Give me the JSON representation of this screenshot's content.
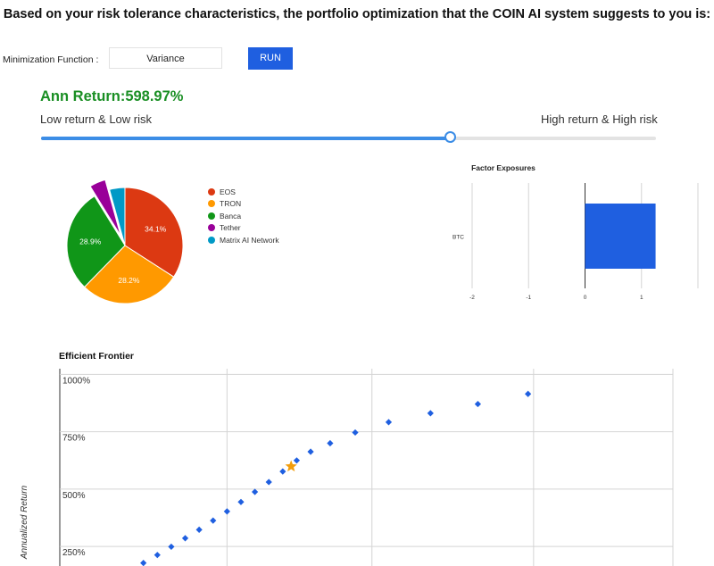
{
  "header": {
    "title": "Based on your risk tolerance characteristics, the portfolio optimization that the COIN AI system suggests to you is:"
  },
  "controls": {
    "min_label": "Minimization Function :",
    "min_value": "Variance",
    "run_label": "RUN"
  },
  "result": {
    "ann_return": "Ann Return:598.97%"
  },
  "slider": {
    "low_label": "Low return & Low risk",
    "high_label": "High return & High risk",
    "value": 0.666
  },
  "colors": {
    "accent": "#1f5fe0",
    "return_green": "#1a8f24",
    "slider": "#3c8de6",
    "star": "#f29d0c"
  },
  "chart_data": [
    {
      "type": "pie",
      "labels": [
        "EOS",
        "TRON",
        "Banca",
        "Tether",
        "Matrix AI Network"
      ],
      "values": [
        34.1,
        28.2,
        28.9,
        4.5,
        4.3
      ],
      "value_labels": [
        "34.1%",
        "28.2%",
        "28.9%",
        "",
        ""
      ],
      "colors": [
        "#dc3912",
        "#ff9900",
        "#109618",
        "#990099",
        "#0099c6"
      ],
      "exploded": [
        "Tether"
      ],
      "legend": "right"
    },
    {
      "type": "bar",
      "orientation": "horizontal",
      "title": "Factor Exposures",
      "categories": [
        "BTC"
      ],
      "values": [
        1.25
      ],
      "xlim": [
        -2,
        2
      ],
      "xticks": [
        "-2",
        "-1",
        "0",
        "1"
      ],
      "color": "#1f5fe0",
      "grid": true
    },
    {
      "type": "scatter",
      "title": "Efficient Frontier",
      "ylabel": "Annualized Return",
      "yticks": [
        "1000%",
        "750%",
        "500%",
        "250%"
      ],
      "ylim_visible": [
        165,
        1025
      ],
      "points": [
        {
          "x": 0.0,
          "y": 178
        },
        {
          "x": 0.05,
          "y": 213
        },
        {
          "x": 0.1,
          "y": 249
        },
        {
          "x": 0.15,
          "y": 286
        },
        {
          "x": 0.2,
          "y": 323
        },
        {
          "x": 0.25,
          "y": 363
        },
        {
          "x": 0.3,
          "y": 403
        },
        {
          "x": 0.35,
          "y": 444
        },
        {
          "x": 0.4,
          "y": 488
        },
        {
          "x": 0.45,
          "y": 531
        },
        {
          "x": 0.5,
          "y": 577
        },
        {
          "x": 0.55,
          "y": 625
        },
        {
          "x": 0.6,
          "y": 663
        },
        {
          "x": 0.67,
          "y": 700
        },
        {
          "x": 0.76,
          "y": 747
        },
        {
          "x": 0.88,
          "y": 792
        },
        {
          "x": 1.03,
          "y": 831
        },
        {
          "x": 1.2,
          "y": 871
        },
        {
          "x": 1.38,
          "y": 915
        }
      ],
      "selected": {
        "x": 0.53,
        "y": 598.97
      },
      "grid": true
    }
  ]
}
